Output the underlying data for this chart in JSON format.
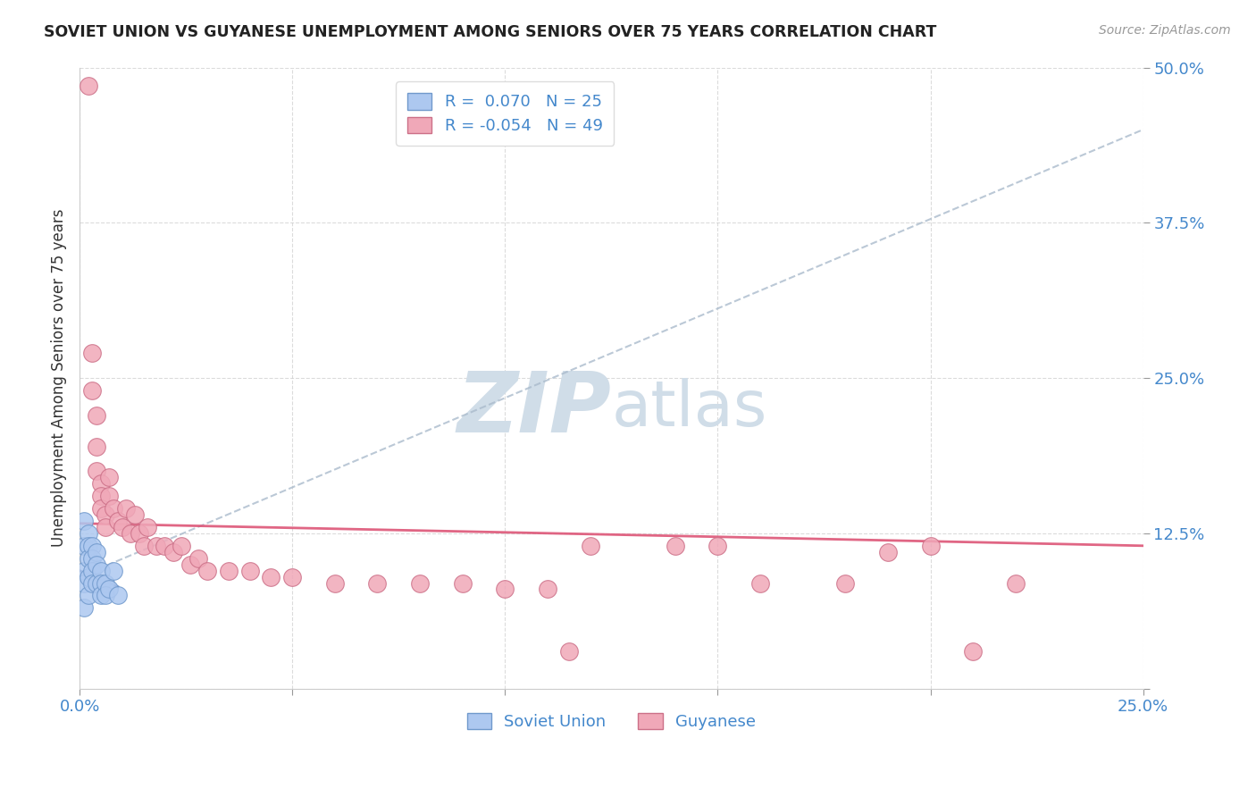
{
  "title": "SOVIET UNION VS GUYANESE UNEMPLOYMENT AMONG SENIORS OVER 75 YEARS CORRELATION CHART",
  "source": "Source: ZipAtlas.com",
  "ylabel": "Unemployment Among Seniors over 75 years",
  "xlim": [
    0.0,
    0.25
  ],
  "ylim": [
    0.0,
    0.5
  ],
  "xticks": [
    0.0,
    0.05,
    0.1,
    0.15,
    0.2,
    0.25
  ],
  "yticks": [
    0.0,
    0.125,
    0.25,
    0.375,
    0.5
  ],
  "xtick_labels": [
    "0.0%",
    "",
    "",
    "",
    "",
    "25.0%"
  ],
  "ytick_labels": [
    "",
    "12.5%",
    "25.0%",
    "37.5%",
    "50.0%"
  ],
  "soviet_color": "#adc8f0",
  "soviet_edge_color": "#7099cc",
  "guyanese_color": "#f0a8b8",
  "guyanese_edge_color": "#cc7088",
  "soviet_line_color": "#4466aa",
  "guyanese_line_color": "#dd5577",
  "dashed_line_color": "#aabbcc",
  "watermark_color": "#d0dde8",
  "soviet_x": [
    0.001,
    0.001,
    0.001,
    0.001,
    0.001,
    0.002,
    0.002,
    0.002,
    0.002,
    0.002,
    0.003,
    0.003,
    0.003,
    0.003,
    0.004,
    0.004,
    0.004,
    0.005,
    0.005,
    0.005,
    0.006,
    0.006,
    0.007,
    0.008,
    0.009
  ],
  "soviet_y": [
    0.135,
    0.115,
    0.095,
    0.085,
    0.065,
    0.125,
    0.115,
    0.105,
    0.09,
    0.075,
    0.115,
    0.105,
    0.095,
    0.085,
    0.11,
    0.1,
    0.085,
    0.095,
    0.085,
    0.075,
    0.085,
    0.075,
    0.08,
    0.095,
    0.075
  ],
  "guyanese_x": [
    0.002,
    0.003,
    0.003,
    0.004,
    0.004,
    0.004,
    0.005,
    0.005,
    0.005,
    0.006,
    0.006,
    0.007,
    0.007,
    0.008,
    0.009,
    0.01,
    0.011,
    0.012,
    0.013,
    0.014,
    0.015,
    0.016,
    0.018,
    0.02,
    0.022,
    0.024,
    0.026,
    0.028,
    0.03,
    0.035,
    0.04,
    0.045,
    0.05,
    0.06,
    0.07,
    0.08,
    0.09,
    0.1,
    0.11,
    0.115,
    0.12,
    0.14,
    0.15,
    0.16,
    0.18,
    0.19,
    0.2,
    0.21,
    0.22
  ],
  "guyanese_y": [
    0.485,
    0.27,
    0.24,
    0.22,
    0.195,
    0.175,
    0.165,
    0.155,
    0.145,
    0.14,
    0.13,
    0.17,
    0.155,
    0.145,
    0.135,
    0.13,
    0.145,
    0.125,
    0.14,
    0.125,
    0.115,
    0.13,
    0.115,
    0.115,
    0.11,
    0.115,
    0.1,
    0.105,
    0.095,
    0.095,
    0.095,
    0.09,
    0.09,
    0.085,
    0.085,
    0.085,
    0.085,
    0.08,
    0.08,
    0.03,
    0.115,
    0.115,
    0.115,
    0.085,
    0.085,
    0.11,
    0.115,
    0.03,
    0.085
  ],
  "soviet_trend_x0": 0.0,
  "soviet_trend_y0": 0.09,
  "soviet_trend_x1": 0.25,
  "soviet_trend_y1": 0.45,
  "guyanese_trend_x0": 0.0,
  "guyanese_trend_y0": 0.133,
  "guyanese_trend_x1": 0.25,
  "guyanese_trend_y1": 0.115,
  "legend_soviet_label": "R =  0.070   N = 25",
  "legend_guyanese_label": "R = -0.054   N = 49",
  "bottom_legend_soviet": "Soviet Union",
  "bottom_legend_guyanese": "Guyanese",
  "marker_size": 200
}
